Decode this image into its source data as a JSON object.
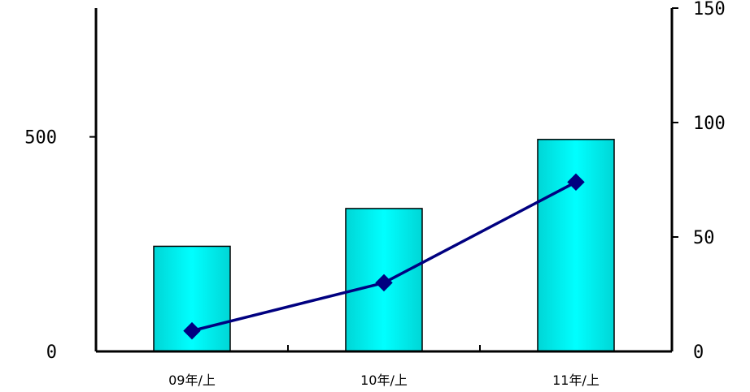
{
  "chart_data": {
    "type": "bar+line",
    "categories": [
      "09年/上",
      "10年/上",
      "11年/上"
    ],
    "series": [
      {
        "type": "bar",
        "axis": "left",
        "values": [
          245,
          333,
          494
        ]
      },
      {
        "type": "line",
        "axis": "right",
        "marker": "diamond",
        "values": [
          9,
          30,
          74
        ]
      }
    ],
    "left_axis": {
      "ylim": [
        0,
        800
      ],
      "ticks": [
        0,
        500
      ]
    },
    "right_axis": {
      "ylim": [
        0,
        150
      ],
      "ticks": [
        0,
        50,
        100,
        150
      ]
    },
    "grid": false,
    "legend": "none",
    "colors": {
      "bar_edge": "#00d6d6",
      "bar_center": "#00ffff",
      "bar_outline": "#000000",
      "line": "#000080",
      "marker": "#000080",
      "axis": "#000000"
    }
  }
}
